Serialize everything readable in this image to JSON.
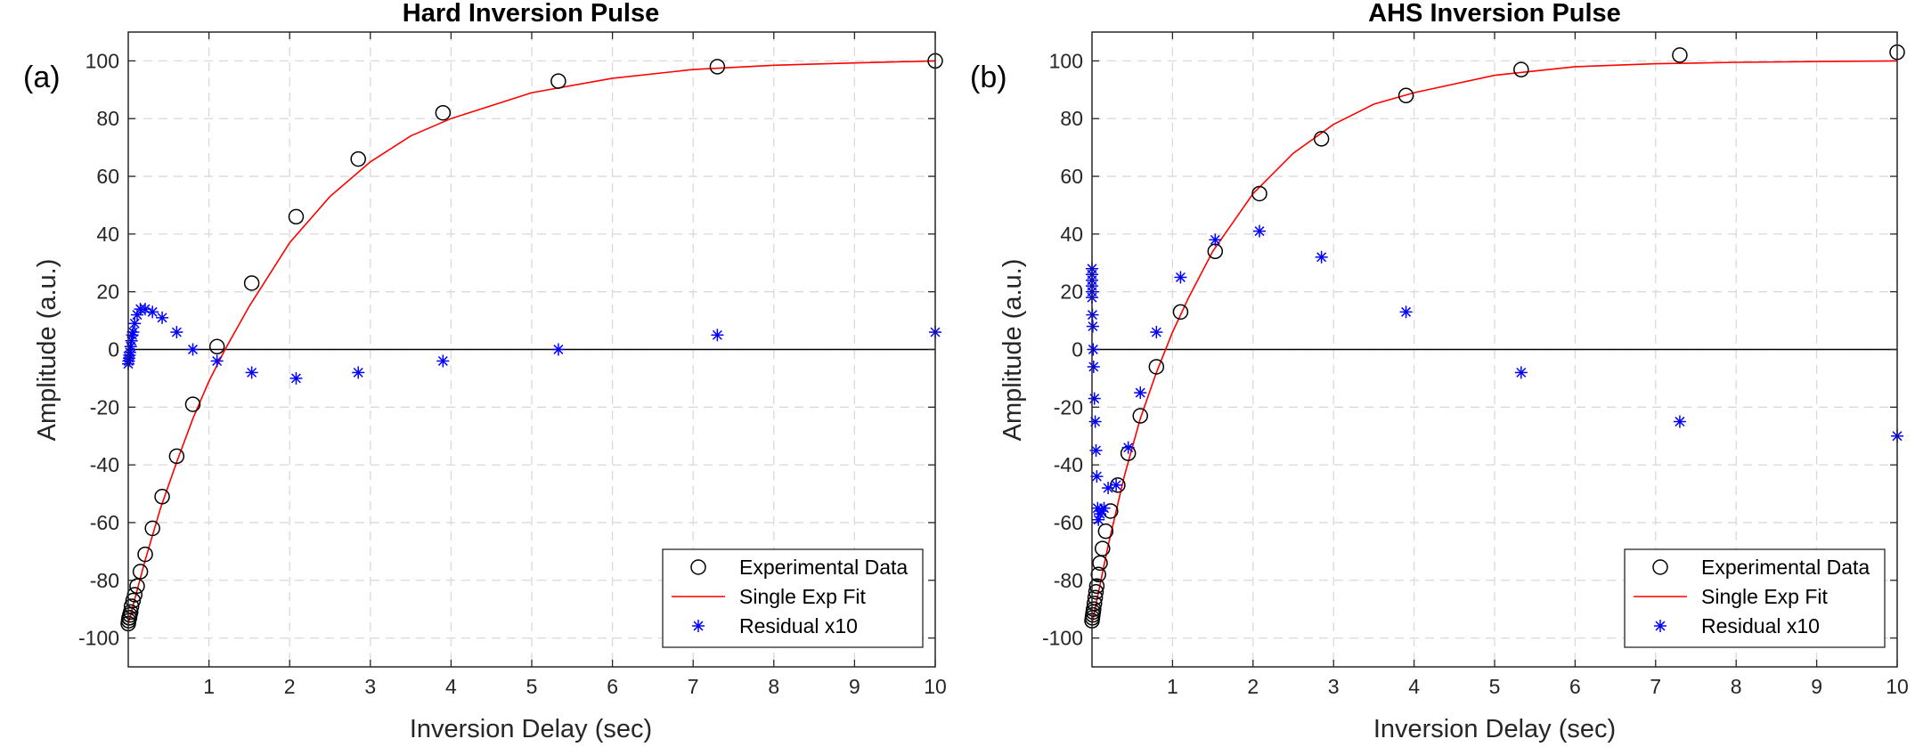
{
  "figure": {
    "panels": [
      "(a)",
      "(b)"
    ]
  },
  "chart_data": [
    {
      "type": "scatter",
      "title": "Hard Inversion Pulse",
      "panel_label": "(a)",
      "xlabel": "Inversion Delay (sec)",
      "ylabel": "Amplitude (a.u.)",
      "xlim": [
        0,
        10
      ],
      "ylim": [
        -110,
        110
      ],
      "xticks": [
        1,
        2,
        3,
        4,
        5,
        6,
        7,
        8,
        9,
        10
      ],
      "yticks": [
        -100,
        -80,
        -60,
        -40,
        -20,
        0,
        20,
        40,
        60,
        80,
        100
      ],
      "grid": true,
      "zero_line": true,
      "legend_position": "bottom-right",
      "series": [
        {
          "name": "Experimental Data",
          "marker": "circle",
          "color": "#000000",
          "x": [
            0.0,
            0.005,
            0.01,
            0.015,
            0.02,
            0.03,
            0.04,
            0.06,
            0.08,
            0.11,
            0.15,
            0.21,
            0.3,
            0.42,
            0.6,
            0.8,
            1.1,
            1.53,
            2.08,
            2.85,
            3.9,
            5.33,
            7.3,
            10.0
          ],
          "y": [
            -95,
            -94,
            -93,
            -93,
            -92,
            -91,
            -89,
            -87,
            -85,
            -82,
            -77,
            -71,
            -62,
            -51,
            -37,
            -19,
            1,
            23,
            46,
            66,
            82,
            93,
            98,
            100
          ]
        },
        {
          "name": "Single Exp Fit",
          "marker": "line",
          "color": "#ff0000",
          "x": [
            0.0,
            0.2,
            0.4,
            0.6,
            0.8,
            1.0,
            1.2,
            1.5,
            2.0,
            2.5,
            3.0,
            3.5,
            4.0,
            5.0,
            6.0,
            7.0,
            8.0,
            9.0,
            10.0
          ],
          "y": [
            -95,
            -74,
            -55,
            -39,
            -24,
            -11,
            0,
            15,
            37,
            53,
            65,
            74,
            80,
            89,
            94,
            97,
            98.5,
            99.3,
            100
          ]
        },
        {
          "name": "Residual x10",
          "marker": "asterisk",
          "color": "#0000ff",
          "x": [
            0.0,
            0.005,
            0.01,
            0.015,
            0.02,
            0.03,
            0.04,
            0.05,
            0.06,
            0.08,
            0.11,
            0.15,
            0.21,
            0.3,
            0.42,
            0.6,
            0.8,
            1.1,
            1.53,
            2.08,
            2.85,
            3.9,
            5.33,
            7.3,
            10.0
          ],
          "y": [
            -5,
            -4,
            -3,
            -2,
            -1,
            1,
            3,
            5,
            6,
            9,
            12,
            14,
            14,
            13,
            11,
            6,
            0,
            -4,
            -8,
            -10,
            -8,
            -4,
            0,
            5,
            6
          ]
        }
      ]
    },
    {
      "type": "scatter",
      "title": "AHS Inversion Pulse",
      "panel_label": "(b)",
      "xlabel": "Inversion Delay (sec)",
      "ylabel": "Amplitude (a.u.)",
      "xlim": [
        0,
        10
      ],
      "ylim": [
        -110,
        110
      ],
      "xticks": [
        1,
        2,
        3,
        4,
        5,
        6,
        7,
        8,
        9,
        10
      ],
      "yticks": [
        -100,
        -80,
        -60,
        -40,
        -20,
        0,
        20,
        40,
        60,
        80,
        100
      ],
      "grid": true,
      "zero_line": true,
      "legend_position": "bottom-right",
      "series": [
        {
          "name": "Experimental Data",
          "marker": "circle",
          "color": "#000000",
          "x": [
            0.0,
            0.005,
            0.01,
            0.015,
            0.02,
            0.03,
            0.04,
            0.05,
            0.06,
            0.08,
            0.1,
            0.13,
            0.17,
            0.23,
            0.32,
            0.45,
            0.6,
            0.8,
            1.1,
            1.53,
            2.08,
            2.85,
            3.9,
            5.33,
            7.3,
            10.0
          ],
          "y": [
            -94,
            -93,
            -92,
            -91,
            -90,
            -88,
            -86,
            -84,
            -82,
            -78,
            -74,
            -69,
            -63,
            -56,
            -47,
            -36,
            -23,
            -6,
            13,
            34,
            54,
            73,
            88,
            97,
            102,
            103
          ]
        },
        {
          "name": "Single Exp Fit",
          "marker": "line",
          "color": "#ff0000",
          "x": [
            0.0,
            0.2,
            0.4,
            0.6,
            0.8,
            1.0,
            1.2,
            1.5,
            2.0,
            2.5,
            3.0,
            3.5,
            4.0,
            5.0,
            6.0,
            7.0,
            8.0,
            9.0,
            10.0
          ],
          "y": [
            -95,
            -68,
            -44,
            -24,
            -8,
            6,
            18,
            34,
            54,
            68,
            78,
            85,
            89,
            95,
            98,
            99,
            99.5,
            99.8,
            100
          ]
        },
        {
          "name": "Residual x10",
          "marker": "asterisk",
          "color": "#0000ff",
          "x": [
            0.0,
            0.0,
            0.0,
            0.0,
            0.0,
            0.0,
            0.005,
            0.01,
            0.015,
            0.02,
            0.03,
            0.04,
            0.05,
            0.06,
            0.07,
            0.08,
            0.1,
            0.12,
            0.15,
            0.2,
            0.3,
            0.45,
            0.6,
            0.8,
            1.1,
            1.53,
            2.08,
            2.85,
            3.9,
            5.33,
            7.3,
            10.0
          ],
          "y": [
            28,
            26,
            24,
            22,
            20,
            18,
            12,
            8,
            0,
            -6,
            -17,
            -25,
            -35,
            -44,
            -55,
            -59,
            -57,
            -56,
            -55,
            -48,
            -47,
            -34,
            -15,
            6,
            25,
            38,
            41,
            32,
            13,
            -8,
            -25,
            -30
          ]
        }
      ]
    }
  ]
}
